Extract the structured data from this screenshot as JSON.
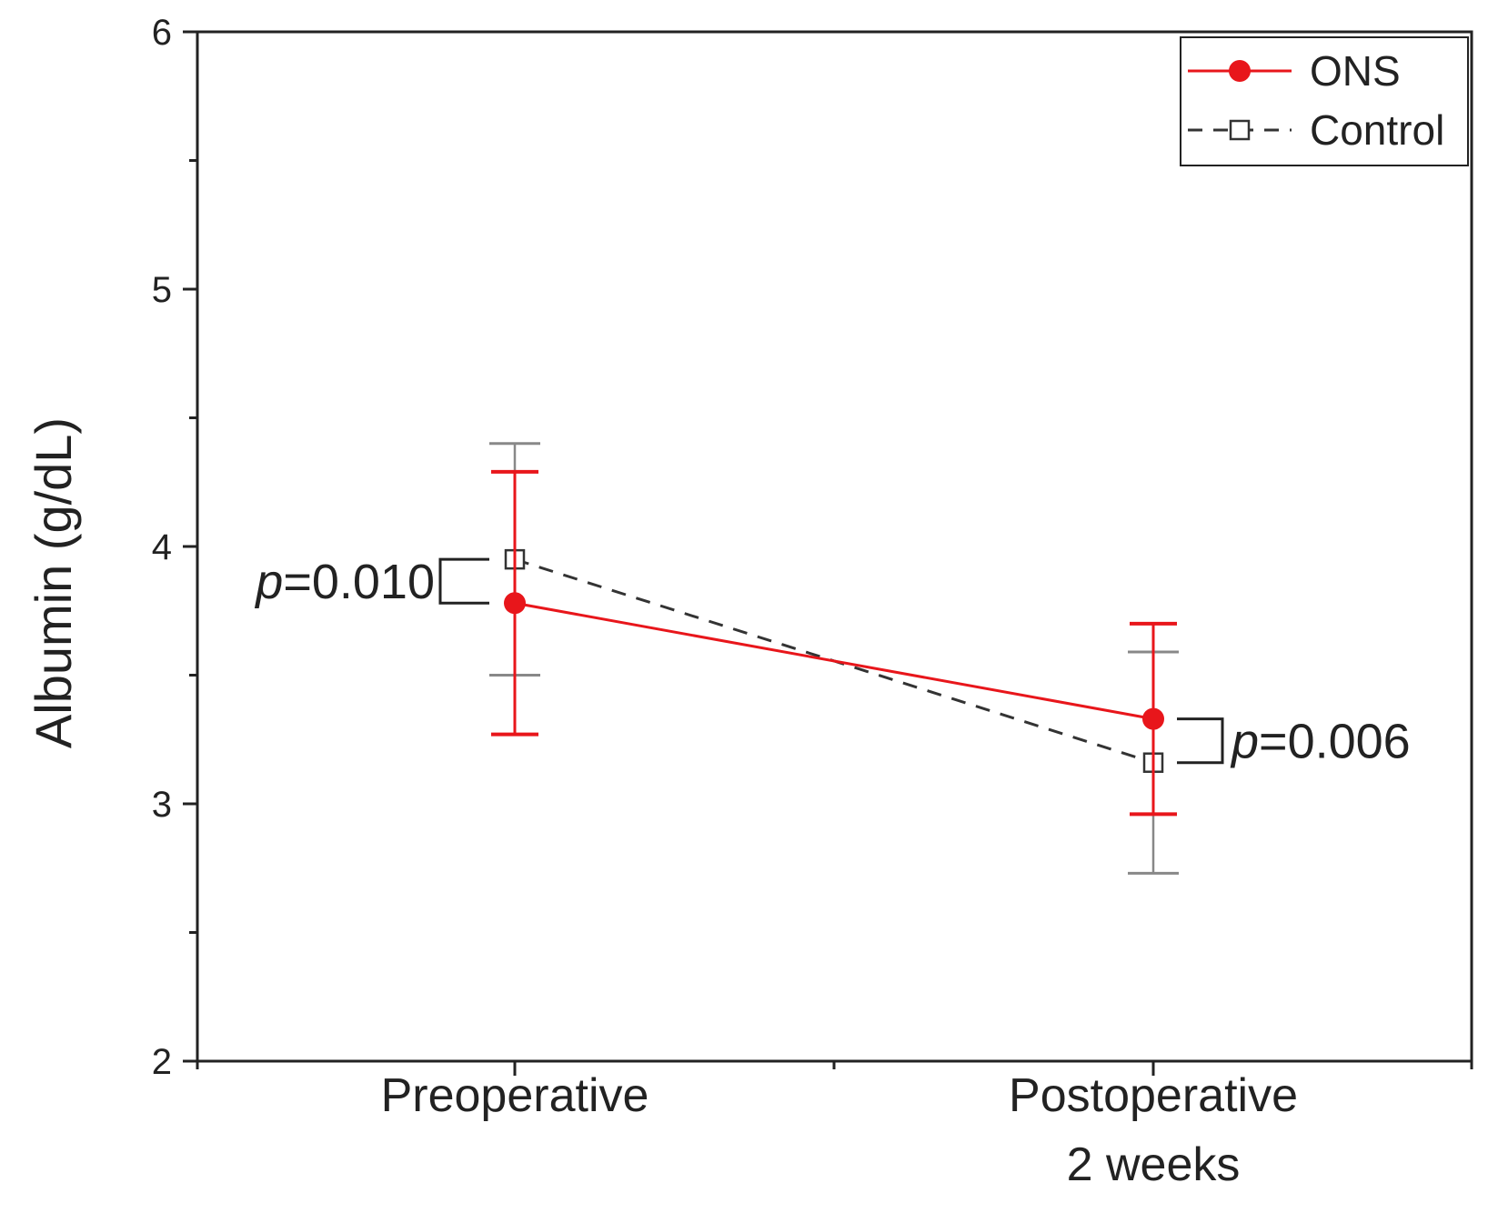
{
  "chart_data": {
    "type": "line",
    "ylabel": "Albumin (g/dL)",
    "xlabel": "",
    "ylim": [
      2,
      6
    ],
    "y_major_ticks": [
      2,
      3,
      4,
      5,
      6
    ],
    "y_minor_ticks": [
      2.5,
      3.5,
      4.5,
      5.5
    ],
    "categories": [
      "Preoperative",
      "Postoperative"
    ],
    "category_second_lines": [
      "",
      "2 weeks"
    ],
    "series": [
      {
        "name": "ONS",
        "color": "#e8161b",
        "line_style": "solid",
        "marker": "filled-circle",
        "values": [
          3.78,
          3.33
        ],
        "error_upper": [
          4.29,
          3.7
        ],
        "error_lower": [
          3.27,
          2.96
        ]
      },
      {
        "name": "Control",
        "color": "#333333",
        "error_color": "#888888",
        "line_style": "dashed",
        "marker": "open-square",
        "values": [
          3.95,
          3.16
        ],
        "error_upper": [
          4.4,
          3.59
        ],
        "error_lower": [
          3.5,
          2.73
        ]
      }
    ],
    "annotations": [
      {
        "category_index": 0,
        "p_symbol": "p",
        "p_value": "=0.010",
        "side": "left"
      },
      {
        "category_index": 1,
        "p_symbol": "p",
        "p_value": "=0.006",
        "side": "right"
      }
    ],
    "legend": {
      "position": "top-right"
    }
  }
}
